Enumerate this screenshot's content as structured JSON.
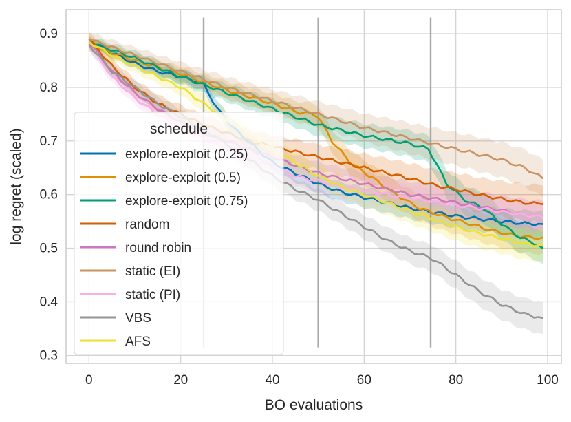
{
  "chart_data": {
    "type": "line",
    "xlabel": "BO evaluations",
    "ylabel": "log regret (scaled)",
    "xlim": [
      -5,
      103
    ],
    "ylim": [
      0.285,
      0.945
    ],
    "xticks": [
      0,
      20,
      40,
      60,
      80,
      100
    ],
    "xtick_labels": [
      "0",
      "20",
      "40",
      "60",
      "80",
      "100"
    ],
    "yticks": [
      0.3,
      0.4,
      0.5,
      0.6,
      0.7,
      0.8,
      0.9
    ],
    "ytick_labels": [
      "0.3",
      "0.4",
      "0.5",
      "0.6",
      "0.7",
      "0.8",
      "0.9"
    ],
    "grid": true,
    "vertical_markers": [
      25,
      50,
      74.5
    ],
    "vertical_marker_range": [
      0.315,
      0.93
    ],
    "legend": {
      "title": "schedule",
      "placement": "center-left"
    },
    "series": [
      {
        "name": "explore-exploit (0.25)",
        "color": "#0173b2",
        "x": [
          0,
          5,
          10,
          15,
          20,
          24,
          25,
          28,
          32,
          36,
          40,
          45,
          50,
          55,
          60,
          65,
          70,
          75,
          80,
          85,
          90,
          95,
          99
        ],
        "y": [
          0.885,
          0.865,
          0.845,
          0.83,
          0.82,
          0.81,
          0.805,
          0.76,
          0.72,
          0.69,
          0.66,
          0.64,
          0.62,
          0.605,
          0.595,
          0.585,
          0.575,
          0.567,
          0.56,
          0.555,
          0.55,
          0.546,
          0.545
        ],
        "spread": 0.025
      },
      {
        "name": "explore-exploit (0.5)",
        "color": "#de8f05",
        "x": [
          0,
          10,
          20,
          30,
          40,
          45,
          49,
          50,
          53,
          57,
          62,
          67,
          72,
          77,
          82,
          87,
          92,
          96,
          99
        ],
        "y": [
          0.88,
          0.85,
          0.825,
          0.795,
          0.77,
          0.755,
          0.75,
          0.745,
          0.7,
          0.66,
          0.63,
          0.6,
          0.575,
          0.56,
          0.548,
          0.535,
          0.525,
          0.52,
          0.52
        ],
        "spread": 0.03
      },
      {
        "name": "explore-exploit (0.75)",
        "color": "#029e73",
        "x": [
          0,
          10,
          20,
          30,
          40,
          50,
          60,
          70,
          74,
          75,
          78,
          82,
          86,
          90,
          94,
          97,
          99
        ],
        "y": [
          0.885,
          0.855,
          0.82,
          0.79,
          0.76,
          0.73,
          0.71,
          0.695,
          0.685,
          0.67,
          0.62,
          0.59,
          0.575,
          0.545,
          0.52,
          0.51,
          0.5
        ],
        "spread": 0.03
      },
      {
        "name": "random",
        "color": "#d55e00",
        "x": [
          0,
          5,
          10,
          15,
          20,
          25,
          30,
          35,
          40,
          45,
          50,
          55,
          60,
          65,
          70,
          75,
          80,
          85,
          90,
          95,
          99
        ],
        "y": [
          0.89,
          0.84,
          0.8,
          0.77,
          0.75,
          0.73,
          0.715,
          0.7,
          0.69,
          0.68,
          0.67,
          0.66,
          0.65,
          0.64,
          0.63,
          0.618,
          0.61,
          0.6,
          0.592,
          0.585,
          0.582
        ],
        "spread": 0.035
      },
      {
        "name": "round robin",
        "color": "#cc78bc",
        "x": [
          0,
          5,
          10,
          15,
          20,
          25,
          30,
          35,
          40,
          45,
          50,
          55,
          60,
          65,
          70,
          75,
          80,
          85,
          90,
          95,
          99
        ],
        "y": [
          0.885,
          0.83,
          0.79,
          0.76,
          0.735,
          0.715,
          0.7,
          0.685,
          0.67,
          0.655,
          0.64,
          0.63,
          0.62,
          0.61,
          0.6,
          0.593,
          0.585,
          0.578,
          0.57,
          0.562,
          0.558
        ],
        "spread": 0.03
      },
      {
        "name": "static (EI)",
        "color": "#ca9161",
        "x": [
          0,
          10,
          20,
          30,
          40,
          50,
          60,
          70,
          75,
          80,
          85,
          90,
          95,
          99
        ],
        "y": [
          0.89,
          0.86,
          0.83,
          0.8,
          0.775,
          0.75,
          0.725,
          0.705,
          0.695,
          0.685,
          0.675,
          0.665,
          0.65,
          0.63
        ],
        "spread": 0.035
      },
      {
        "name": "static (PI)",
        "color": "#fbafe4",
        "x": [
          0,
          5,
          10,
          15,
          20,
          25,
          30,
          35,
          40,
          45,
          50,
          55,
          60,
          65,
          70,
          75,
          80,
          85,
          90,
          95,
          99
        ],
        "y": [
          0.88,
          0.82,
          0.78,
          0.75,
          0.725,
          0.705,
          0.685,
          0.665,
          0.65,
          0.635,
          0.625,
          0.615,
          0.607,
          0.6,
          0.593,
          0.587,
          0.58,
          0.575,
          0.568,
          0.562,
          0.558
        ],
        "spread": 0.03
      },
      {
        "name": "VBS",
        "color": "#949494",
        "x": [
          0,
          5,
          10,
          15,
          20,
          25,
          30,
          35,
          40,
          45,
          50,
          55,
          60,
          65,
          70,
          75,
          80,
          85,
          90,
          95,
          99
        ],
        "y": [
          0.88,
          0.83,
          0.8,
          0.77,
          0.745,
          0.72,
          0.695,
          0.665,
          0.635,
          0.61,
          0.59,
          0.565,
          0.54,
          0.515,
          0.495,
          0.48,
          0.45,
          0.42,
          0.395,
          0.377,
          0.37
        ],
        "spread": 0.03
      },
      {
        "name": "AFS",
        "color": "#ece133",
        "x": [
          0,
          5,
          10,
          15,
          20,
          25,
          30,
          35,
          40,
          45,
          50,
          55,
          60,
          65,
          70,
          75,
          80,
          85,
          90,
          95,
          99
        ],
        "y": [
          0.885,
          0.86,
          0.84,
          0.82,
          0.8,
          0.77,
          0.74,
          0.71,
          0.685,
          0.66,
          0.635,
          0.615,
          0.6,
          0.585,
          0.57,
          0.555,
          0.54,
          0.528,
          0.518,
          0.508,
          0.505
        ],
        "spread": 0.03
      }
    ]
  }
}
